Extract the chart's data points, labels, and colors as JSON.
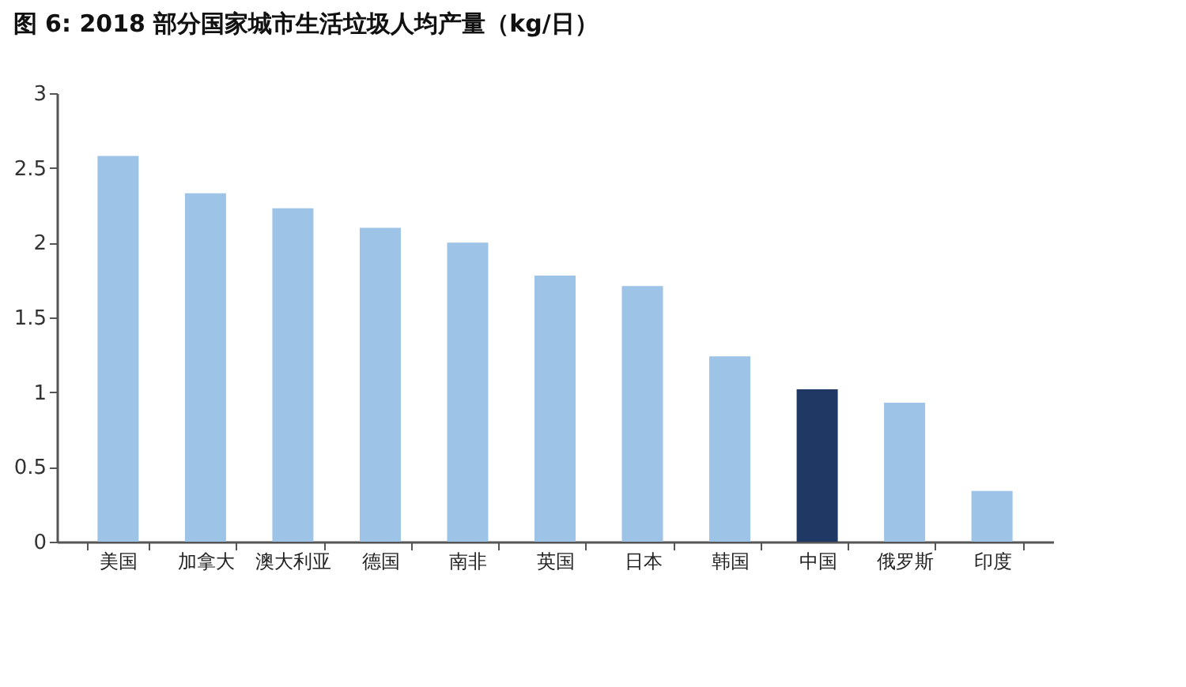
{
  "chart_data": {
    "type": "bar",
    "title": "图 6: 2018 部分国家城市生活垃圾人均产量（kg/日）",
    "categories": [
      "美国",
      "加拿大",
      "澳大利亚",
      "德国",
      "南非",
      "英国",
      "日本",
      "韩国",
      "中国",
      "俄罗斯",
      "印度"
    ],
    "values": [
      2.58,
      2.33,
      2.23,
      2.1,
      2.0,
      1.78,
      1.71,
      1.24,
      1.02,
      0.93,
      0.34
    ],
    "colors": [
      "#9dc3e6",
      "#9dc3e6",
      "#9dc3e6",
      "#9dc3e6",
      "#9dc3e6",
      "#9dc3e6",
      "#9dc3e6",
      "#9dc3e6",
      "#1f3864",
      "#9dc3e6",
      "#9dc3e6"
    ],
    "ylim": [
      0,
      3
    ],
    "yticks": [
      0,
      0.5,
      1,
      1.5,
      2,
      2.5,
      3
    ],
    "grid": false
  }
}
